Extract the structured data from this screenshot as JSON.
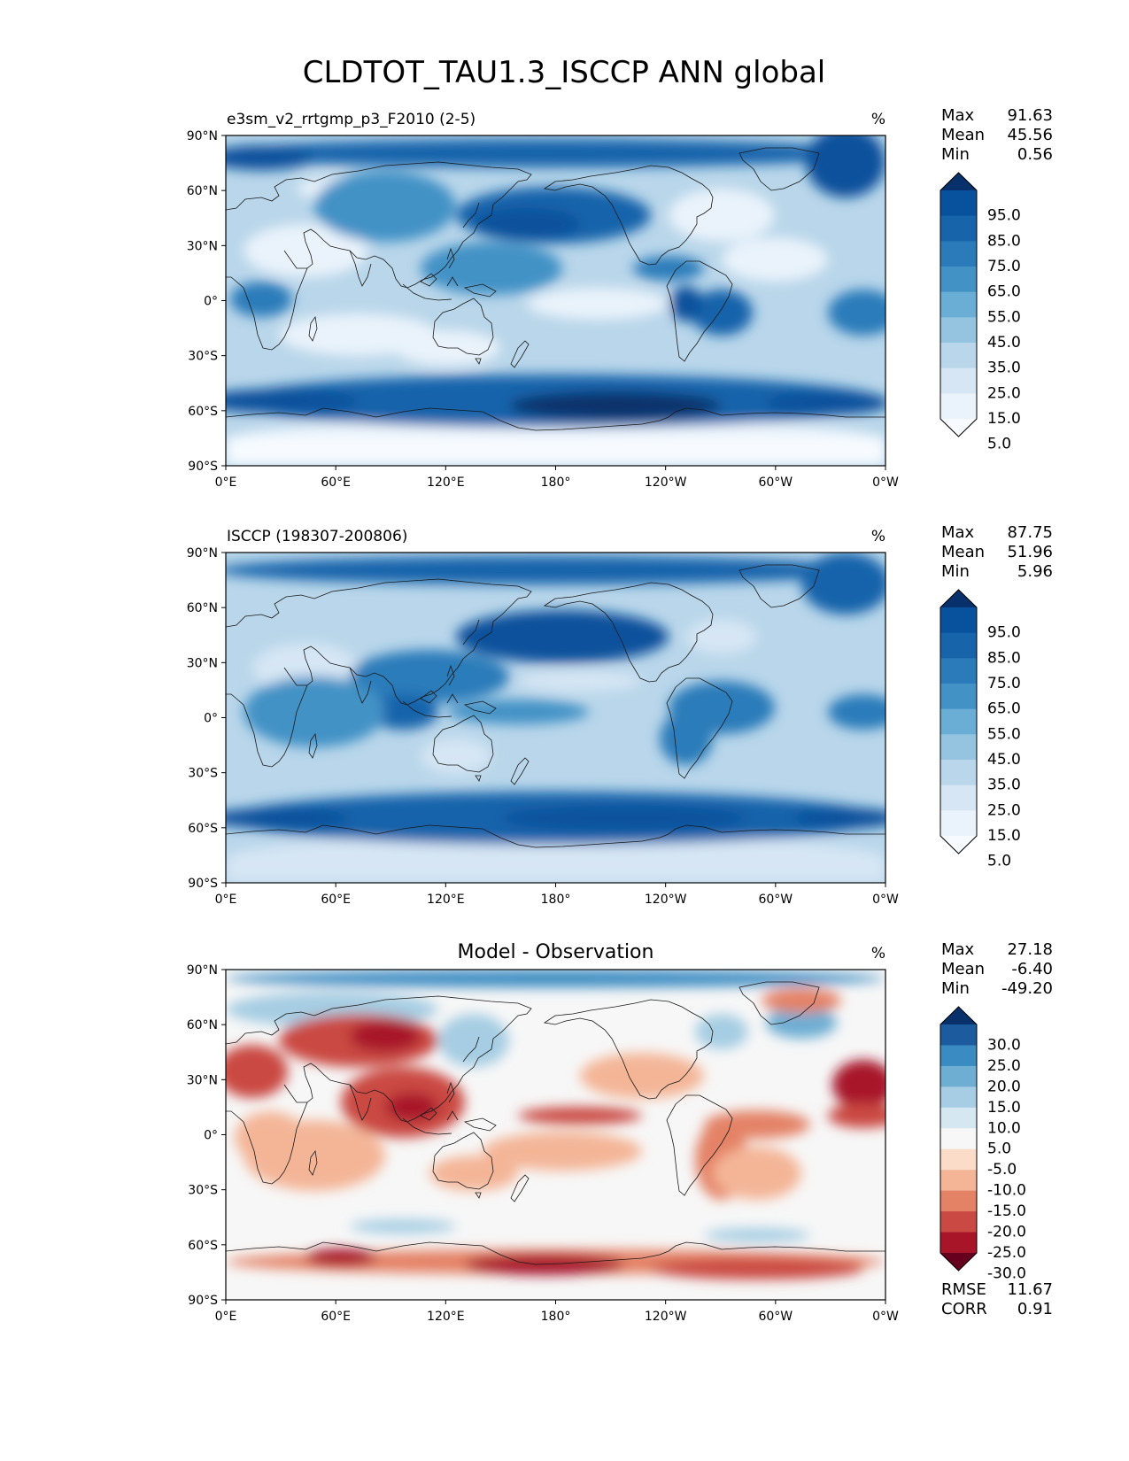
{
  "figure_title": "CLDTOT_TAU1.3_ISCCP ANN global",
  "axes": {
    "lat_ticks": [
      "90°N",
      "60°N",
      "30°N",
      "0°",
      "30°S",
      "60°S",
      "90°S"
    ],
    "lon_ticks": [
      "0°E",
      "60°E",
      "120°E",
      "180°",
      "120°W",
      "60°W",
      "0°W"
    ]
  },
  "panels": [
    {
      "id": "model",
      "title_left": "e3sm_v2_rrtgmp_p3_F2010 (2-5)",
      "title_center": "",
      "units": "%",
      "stats": [
        {
          "label": "Max",
          "value": "91.63"
        },
        {
          "label": "Mean",
          "value": "45.56"
        },
        {
          "label": "Min",
          "value": "0.56"
        }
      ],
      "colormap": "Blues",
      "colorbar": {
        "labels": [
          "95.0",
          "85.0",
          "75.0",
          "65.0",
          "55.0",
          "45.0",
          "35.0",
          "25.0",
          "15.0",
          "5.0"
        ],
        "colors": [
          "#08306b",
          "#08519c",
          "#1764ab",
          "#2b7bba",
          "#4292c6",
          "#6aaed6",
          "#94c4df",
          "#b9d6ea",
          "#d6e6f4",
          "#eaf3fb",
          "#f7fbff"
        ]
      }
    },
    {
      "id": "obs",
      "title_left": "ISCCP (198307-200806)",
      "title_center": "",
      "units": "%",
      "stats": [
        {
          "label": "Max",
          "value": "87.75"
        },
        {
          "label": "Mean",
          "value": "51.96"
        },
        {
          "label": "Min",
          "value": "5.96"
        }
      ],
      "colormap": "Blues",
      "colorbar": {
        "labels": [
          "95.0",
          "85.0",
          "75.0",
          "65.0",
          "55.0",
          "45.0",
          "35.0",
          "25.0",
          "15.0",
          "5.0"
        ],
        "colors": [
          "#08306b",
          "#08519c",
          "#1764ab",
          "#2b7bba",
          "#4292c6",
          "#6aaed6",
          "#94c4df",
          "#b9d6ea",
          "#d6e6f4",
          "#eaf3fb",
          "#f7fbff"
        ]
      }
    },
    {
      "id": "diff",
      "title_left": "",
      "title_center": "Model - Observation",
      "units": "%",
      "stats": [
        {
          "label": "Max",
          "value": "27.18"
        },
        {
          "label": "Mean",
          "value": "-6.40"
        },
        {
          "label": "Min",
          "value": "-49.20"
        }
      ],
      "colormap": "RdBu",
      "colorbar": {
        "labels": [
          "30.0",
          "25.0",
          "20.0",
          "15.0",
          "10.0",
          "5.0",
          "-5.0",
          "-10.0",
          "-15.0",
          "-20.0",
          "-25.0",
          "-30.0"
        ],
        "colors": [
          "#08306b",
          "#1c5c9e",
          "#3a8bc2",
          "#6eaed3",
          "#a6cde3",
          "#d5e7f1",
          "#f7f7f7",
          "#fbdcc9",
          "#f4b597",
          "#e48266",
          "#ca4a43",
          "#a81529",
          "#67001f"
        ]
      },
      "footer_stats": [
        {
          "label": "RMSE",
          "value": "11.67"
        },
        {
          "label": "CORR",
          "value": "0.91"
        }
      ]
    }
  ]
}
